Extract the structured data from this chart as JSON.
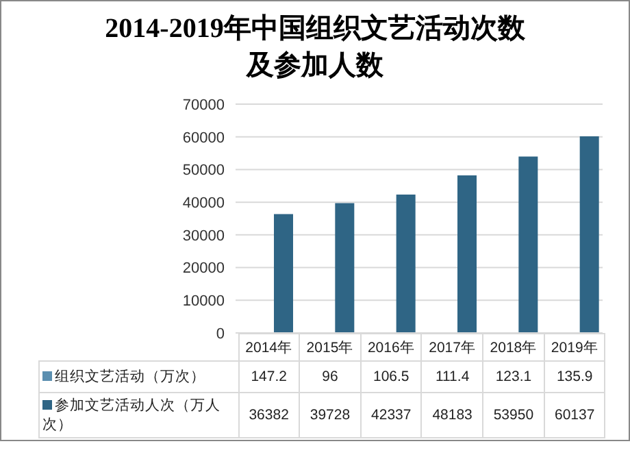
{
  "chart_data": {
    "type": "bar",
    "title": "2014-2019年中国组织文艺活动次数及参加人数",
    "categories": [
      "2014年",
      "2015年",
      "2016年",
      "2017年",
      "2018年",
      "2019年"
    ],
    "series": [
      {
        "name": "组织文艺活动（万次）",
        "color": "#5b8fb0",
        "values": [
          147.2,
          96,
          106.5,
          111.4,
          123.1,
          135.9
        ]
      },
      {
        "name": "参加文艺活动人次（万人次）",
        "color": "#2f6585",
        "values": [
          36382,
          39728,
          42337,
          48183,
          53950,
          60137
        ]
      }
    ],
    "ylim": [
      0,
      70000
    ],
    "yticks": [
      0,
      10000,
      20000,
      30000,
      40000,
      50000,
      60000,
      70000
    ],
    "grid": "y",
    "legend": "bottom",
    "data_labels": true
  }
}
